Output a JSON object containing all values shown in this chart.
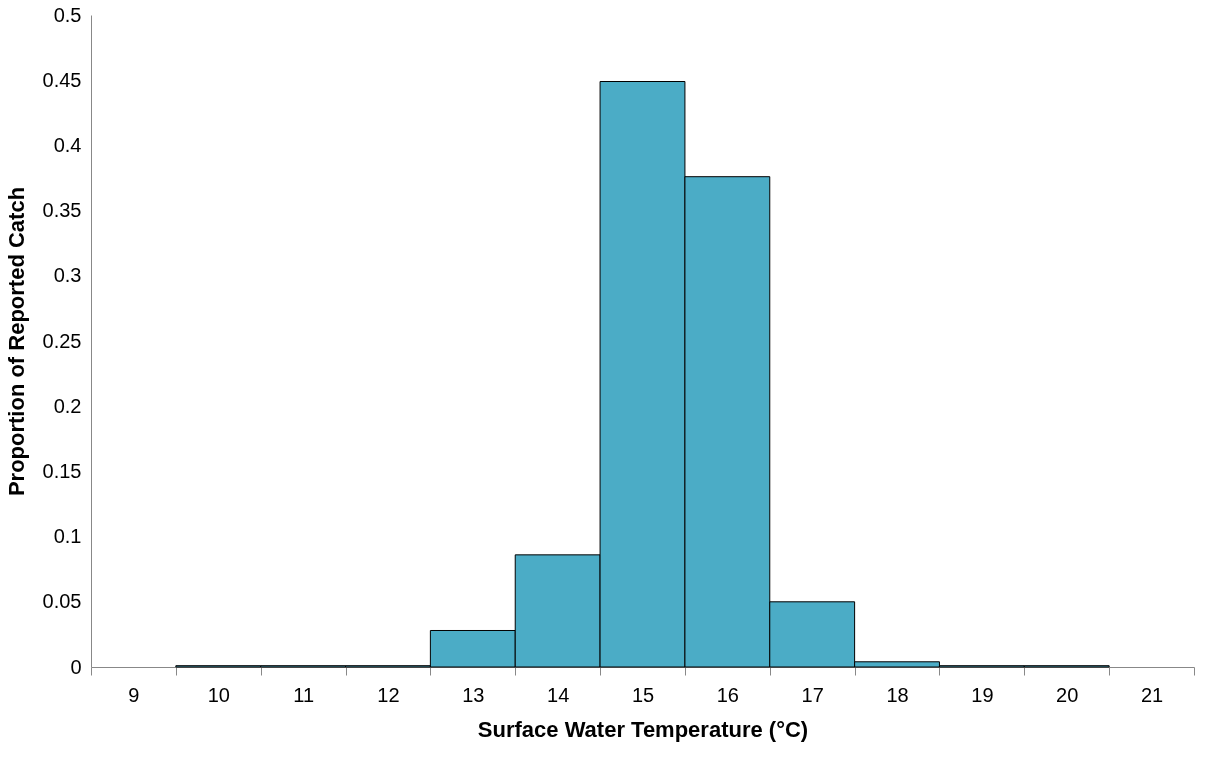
{
  "chart_data": {
    "type": "bar",
    "xlabel": "Surface Water Temperature (°C)",
    "ylabel": "Proportion of Reported Catch",
    "categories": [
      "9",
      "10",
      "11",
      "12",
      "13",
      "14",
      "15",
      "16",
      "17",
      "18",
      "19",
      "20",
      "21"
    ],
    "values": [
      null,
      0.001,
      0.001,
      0.001,
      0.028,
      0.086,
      0.449,
      0.376,
      0.05,
      0.004,
      0.001,
      0.001,
      null
    ],
    "color": "#4bacc6",
    "ylim": [
      0,
      0.5
    ],
    "yticks": [
      0,
      0.05,
      0.1,
      0.15,
      0.2,
      0.25,
      0.3,
      0.35,
      0.4,
      0.45,
      0.5
    ],
    "grid": false
  }
}
